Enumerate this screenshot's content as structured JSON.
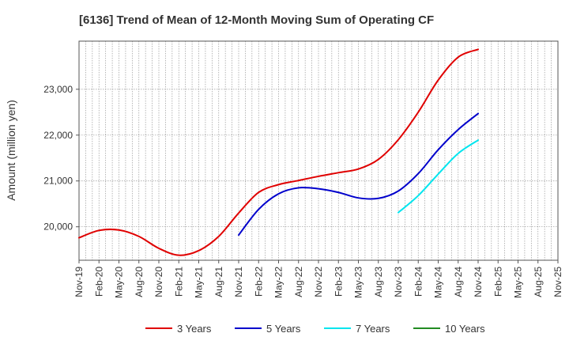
{
  "chart_data": {
    "type": "line",
    "title": "[6136]  Trend of Mean of 12-Month Moving Sum of Operating CF",
    "xlabel": "",
    "ylabel": "Amount (million yen)",
    "ylim": [
      19270,
      24050
    ],
    "yticks": [
      20000,
      21000,
      22000,
      23000
    ],
    "ytick_labels": [
      "20,000",
      "21,000",
      "22,000",
      "23,000"
    ],
    "xtick_labels": [
      "Nov-19",
      "Feb-20",
      "May-20",
      "Aug-20",
      "Nov-20",
      "Feb-21",
      "May-21",
      "Aug-21",
      "Nov-21",
      "Feb-22",
      "May-22",
      "Aug-22",
      "Nov-22",
      "Feb-23",
      "May-23",
      "Aug-23",
      "Nov-23",
      "Feb-24",
      "May-24",
      "Aug-24",
      "Nov-24",
      "Feb-25",
      "May-25",
      "Aug-25",
      "Nov-25"
    ],
    "x_month_range": [
      0,
      72
    ],
    "grid": true,
    "legend_position": "bottom",
    "series": [
      {
        "name": "3 Years",
        "color": "#e00000",
        "x": [
          0,
          3,
          6,
          9,
          12,
          15,
          18,
          21,
          24,
          27,
          30,
          33,
          36,
          39,
          42,
          45,
          48,
          51,
          54,
          57,
          60
        ],
        "values": [
          19760,
          19920,
          19930,
          19790,
          19530,
          19380,
          19480,
          19790,
          20300,
          20750,
          20920,
          21010,
          21100,
          21180,
          21260,
          21470,
          21900,
          22500,
          23200,
          23700,
          23870
        ]
      },
      {
        "name": "5 Years",
        "color": "#0000cc",
        "x": [
          24,
          27,
          30,
          33,
          36,
          39,
          42,
          45,
          48,
          51,
          54,
          57,
          60
        ],
        "values": [
          19820,
          20380,
          20720,
          20850,
          20830,
          20750,
          20630,
          20620,
          20780,
          21160,
          21680,
          22120,
          22470
        ]
      },
      {
        "name": "7 Years",
        "color": "#00e5ee",
        "x": [
          48,
          51,
          54,
          57,
          60
        ],
        "values": [
          20310,
          20680,
          21150,
          21600,
          21890
        ]
      },
      {
        "name": "10 Years",
        "color": "#228b22",
        "x": [],
        "values": []
      }
    ]
  }
}
